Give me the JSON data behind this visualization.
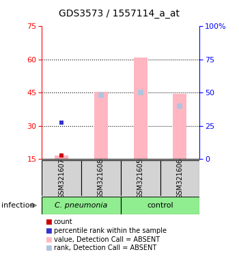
{
  "title": "GDS3573 / 1557114_a_at",
  "samples": [
    "GSM321607",
    "GSM321608",
    "GSM321605",
    "GSM321606"
  ],
  "ylim_left": [
    15,
    75
  ],
  "ylim_right": [
    0,
    100
  ],
  "yticks_left": [
    15,
    30,
    45,
    60,
    75
  ],
  "yticks_right": [
    0,
    25,
    50,
    75,
    100
  ],
  "ytick_labels_right": [
    "0",
    "25",
    "50",
    "75",
    "100%"
  ],
  "bar_values": [
    16.5,
    45.5,
    61.0,
    44.5
  ],
  "bar_color": "#ffb6c1",
  "rank_markers": [
    null,
    44.0,
    45.0,
    39.0
  ],
  "rank_color": "#b0c4de",
  "count_markers": [
    16.5,
    null,
    null,
    null
  ],
  "count_color": "#cc0000",
  "blue_markers": [
    31.5,
    null,
    null,
    null
  ],
  "blue_color": "#3333cc",
  "sample_box_color": "#d3d3d3",
  "infection_label": "infection",
  "cpneumonia_label": "C. pneumonia",
  "control_label": "control",
  "group_color": "#90ee90",
  "legend_items": [
    {
      "color": "#cc0000",
      "label": "count"
    },
    {
      "color": "#3333cc",
      "label": "percentile rank within the sample"
    },
    {
      "color": "#ffb6c1",
      "label": "value, Detection Call = ABSENT"
    },
    {
      "color": "#b0c4de",
      "label": "rank, Detection Call = ABSENT"
    }
  ]
}
